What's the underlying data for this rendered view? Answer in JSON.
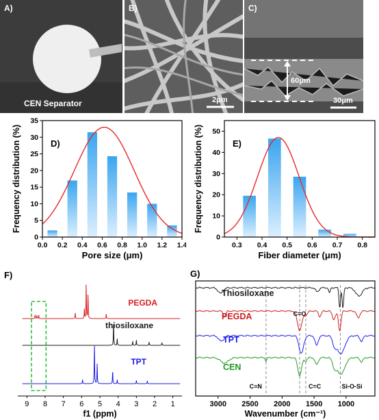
{
  "images": {
    "A": {
      "label": "A)",
      "caption": "CEN Separator"
    },
    "B": {
      "label": "B)",
      "scale": "2μm"
    },
    "C": {
      "label": "C)",
      "thickness": "60μm",
      "scale": "30μm"
    }
  },
  "chart_data": [
    {
      "panel": "D)",
      "type": "bar",
      "xlabel": "Pore size (μm)",
      "ylabel": "Frequency distribution (%)",
      "x": [
        0.1,
        0.3,
        0.5,
        0.7,
        0.9,
        1.1,
        1.3
      ],
      "values": [
        2,
        17,
        31.5,
        24.3,
        13.4,
        10,
        3.5
      ],
      "fit_curve": {
        "type": "gaussian",
        "center": 0.62,
        "peak": 33,
        "sigma": 0.3
      },
      "xlim": [
        0.0,
        1.4
      ],
      "ylim": [
        0,
        35
      ],
      "xticks": [
        "0.0",
        "0.2",
        "0.4",
        "0.6",
        "0.8",
        "1.0",
        "1.2",
        "1.4"
      ],
      "yticks": [
        "0",
        "5",
        "10",
        "15",
        "20",
        "25",
        "30",
        "35"
      ],
      "bar_color": "#3aa5ee",
      "curve_color": "#e8262a"
    },
    {
      "panel": "E)",
      "type": "bar",
      "xlabel": "Fiber diameter (μm)",
      "ylabel": "Frequency distribution (%)",
      "x": [
        0.35,
        0.45,
        0.55,
        0.65,
        0.75
      ],
      "values": [
        19.5,
        46.5,
        28.5,
        3.5,
        1.5
      ],
      "fit_curve": {
        "type": "gaussian",
        "center": 0.465,
        "peak": 47,
        "sigma": 0.083
      },
      "xlim": [
        0.25,
        0.85
      ],
      "ylim": [
        0,
        55
      ],
      "xticks": [
        "0.3",
        "0.4",
        "0.5",
        "0.6",
        "0.7",
        "0.8"
      ],
      "yticks": [
        "0",
        "10",
        "20",
        "30",
        "40",
        "50"
      ],
      "bar_color": "#3aa5ee",
      "curve_color": "#e8262a"
    },
    {
      "panel": "F)",
      "type": "line",
      "xlabel": "f1 (ppm)",
      "xlim": [
        9.5,
        0.5
      ],
      "xticks": [
        "9",
        "8",
        "7",
        "6",
        "5",
        "4",
        "3",
        "2",
        "1"
      ],
      "series": [
        {
          "name": "PEGDA",
          "color": "#d81e1e",
          "peaks": [
            [
              8.55,
              6
            ],
            [
              8.45,
              5
            ],
            [
              8.35,
              5
            ],
            [
              6.35,
              9
            ],
            [
              5.85,
              14
            ],
            [
              5.75,
              52
            ],
            [
              5.65,
              38
            ],
            [
              4.65,
              7
            ]
          ]
        },
        {
          "name": "thiosiloxane",
          "color": "#1a1a1a",
          "peaks": [
            [
              4.25,
              36
            ],
            [
              4.05,
              10
            ],
            [
              3.2,
              6
            ],
            [
              3.0,
              8
            ],
            [
              2.3,
              5
            ],
            [
              1.6,
              4
            ]
          ]
        },
        {
          "name": "TPT",
          "color": "#1a1ae0",
          "peaks": [
            [
              5.95,
              6
            ],
            [
              5.3,
              62
            ],
            [
              5.15,
              30
            ],
            [
              4.3,
              20
            ],
            [
              4.05,
              6
            ],
            [
              3.0,
              5
            ],
            [
              2.4,
              4
            ]
          ]
        }
      ]
    },
    {
      "panel": "G)",
      "type": "line",
      "xlabel": "Wavenumber (cm⁻¹)",
      "xlim": [
        3350,
        550
      ],
      "xticks": [
        "3000",
        "2500",
        "2000",
        "1500",
        "1000"
      ],
      "annotations": [
        "C=O",
        "C≡N",
        "C=C",
        "Si-O-Si"
      ],
      "series": [
        {
          "name": "Thiosiloxane",
          "color": "#1a1a1a",
          "bands": [
            [
              2960,
              8,
              40
            ],
            [
              1450,
              6,
              25
            ],
            [
              1260,
              8,
              12
            ],
            [
              1100,
              28,
              12
            ],
            [
              1050,
              30,
              12
            ],
            [
              800,
              12,
              50
            ]
          ]
        },
        {
          "name": "PEGDA",
          "color": "#d01c1c",
          "bands": [
            [
              2900,
              8,
              20
            ],
            [
              1725,
              28,
              35
            ],
            [
              1630,
              6,
              25
            ],
            [
              1410,
              8,
              20
            ],
            [
              1190,
              12,
              25
            ],
            [
              1100,
              28,
              20
            ],
            [
              810,
              10,
              25
            ]
          ]
        },
        {
          "name": "TPT",
          "color": "#1a1aee",
          "bands": [
            [
              2950,
              8,
              40
            ],
            [
              1700,
              26,
              35
            ],
            [
              1460,
              14,
              25
            ],
            [
              1180,
              12,
              30
            ],
            [
              1080,
              26,
              60
            ],
            [
              760,
              8,
              25
            ]
          ]
        },
        {
          "name": "CEN",
          "color": "#229922",
          "bands": [
            [
              2900,
              8,
              60
            ],
            [
              2250,
              5,
              12
            ],
            [
              1725,
              26,
              30
            ],
            [
              1630,
              5,
              20
            ],
            [
              1460,
              10,
              25
            ],
            [
              1180,
              12,
              30
            ],
            [
              1080,
              24,
              60
            ],
            [
              760,
              6,
              25
            ]
          ]
        }
      ]
    }
  ]
}
